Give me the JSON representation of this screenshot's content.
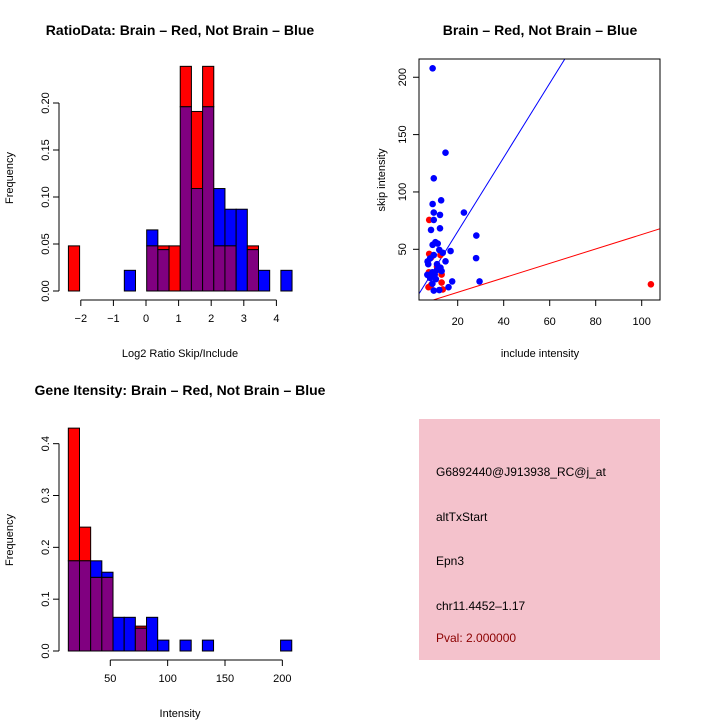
{
  "colors": {
    "red": "#ff0000",
    "blue": "#0000ff",
    "overlap": "#800080",
    "panel_bg": "#f4c2cc",
    "pval": "#8b0000"
  },
  "chart_data": [
    {
      "type": "bar",
      "title": "RatioData: Brain – Red, Not Brain – Blue",
      "xlabel": "Log2 Ratio Skip/Include",
      "ylabel": "Frequency",
      "xticks": [
        "−2",
        "−1",
        "0",
        "1",
        "2",
        "3",
        "4"
      ],
      "xtick_values": [
        -2,
        -1,
        0,
        1,
        2,
        3,
        4
      ],
      "yticks": [
        "0.00",
        "0.05",
        "0.10",
        "0.15",
        "0.20"
      ],
      "ytick_values": [
        0,
        0.05,
        0.1,
        0.15,
        0.2
      ],
      "bin_start": -2.38,
      "bin_width": 0.343,
      "series": [
        {
          "name": "Brain",
          "color": "red",
          "values": [
            0.048,
            0,
            0,
            0,
            0,
            0,
            0,
            0.048,
            0.048,
            0.048,
            0.239,
            0.191,
            0.239,
            0.048,
            0.048,
            0,
            0.048,
            0,
            0,
            0
          ]
        },
        {
          "name": "Not Brain",
          "color": "blue",
          "values": [
            0,
            0,
            0,
            0,
            0,
            0.022,
            0,
            0.065,
            0.044,
            0,
            0.196,
            0.109,
            0.196,
            0.109,
            0.087,
            0.087,
            0.044,
            0.022,
            0,
            0.022
          ]
        }
      ]
    },
    {
      "type": "scatter",
      "title": "Brain – Red, Not Brain – Blue",
      "xlabel": "include intensity",
      "ylabel": "skip intensity",
      "xticks": [
        "20",
        "40",
        "60",
        "80",
        "100"
      ],
      "xtick_values": [
        20,
        40,
        60,
        80,
        100
      ],
      "yticks": [
        "50",
        "100",
        "150",
        "200"
      ],
      "ytick_values": [
        50,
        100,
        150,
        200
      ],
      "xlim": [
        3.3,
        108
      ],
      "ylim": [
        5.8,
        215.7
      ],
      "lines": [
        {
          "color": "blue",
          "slope": 3.23,
          "intercept": 0.9
        },
        {
          "color": "red",
          "slope": 0.63,
          "intercept": -0.1
        }
      ],
      "series": [
        {
          "name": "Brain",
          "color": "red",
          "points": [
            [
              7.6,
              75.6
            ],
            [
              7.6,
              46
            ],
            [
              8.5,
              43
            ],
            [
              11,
              35
            ],
            [
              7.5,
              30
            ],
            [
              13,
              28
            ],
            [
              7.3,
              17
            ],
            [
              8.5,
              19
            ],
            [
              13,
              21
            ],
            [
              13.5,
              15
            ],
            [
              104,
              19.5
            ],
            [
              12.5,
              45
            ]
          ]
        },
        {
          "name": "Not Brain",
          "color": "blue",
          "points": [
            [
              9.1,
              207.8
            ],
            [
              14.7,
              134.2
            ],
            [
              9.6,
              111.9
            ],
            [
              12.8,
              92.7
            ],
            [
              9.1,
              89.5
            ],
            [
              9.6,
              82
            ],
            [
              22.7,
              82
            ],
            [
              12.3,
              80
            ],
            [
              9.6,
              75.6
            ],
            [
              12.3,
              68.3
            ],
            [
              8.4,
              66.9
            ],
            [
              28.1,
              62
            ],
            [
              10.3,
              56.2
            ],
            [
              9.1,
              53.9
            ],
            [
              11.3,
              55
            ],
            [
              12,
              49.5
            ],
            [
              16.9,
              48.5
            ],
            [
              13.5,
              47
            ],
            [
              9.6,
              45
            ],
            [
              28,
              42.3
            ],
            [
              6.9,
              39.4
            ],
            [
              14.7,
              39.5
            ],
            [
              7.2,
              37
            ],
            [
              11,
              37
            ],
            [
              12.5,
              34
            ],
            [
              9,
              30
            ],
            [
              13,
              31
            ],
            [
              6.8,
              27.8
            ],
            [
              8,
              25
            ],
            [
              10.5,
              24
            ],
            [
              17.6,
              22
            ],
            [
              29.5,
              22
            ],
            [
              9,
              20
            ],
            [
              16,
              17
            ],
            [
              12,
              14.5
            ],
            [
              9.6,
              14
            ],
            [
              11,
              32
            ],
            [
              8,
              42
            ],
            [
              10,
              28
            ]
          ]
        }
      ]
    },
    {
      "type": "bar",
      "title": "Gene Itensity: Brain – Red, Not Brain – Blue",
      "xlabel": "Intensity",
      "ylabel": "Frequency",
      "xticks": [
        "50",
        "100",
        "150",
        "200"
      ],
      "xtick_values": [
        50,
        100,
        150,
        200
      ],
      "yticks": [
        "0.0",
        "0.1",
        "0.2",
        "0.3",
        "0.4"
      ],
      "ytick_values": [
        0,
        0.1,
        0.2,
        0.3,
        0.4
      ],
      "bin_start": 13.4,
      "bin_width": 9.74,
      "series": [
        {
          "name": "Brain",
          "color": "red",
          "values": [
            0.43,
            0.239,
            0.142,
            0.142,
            0,
            0,
            0.048,
            0,
            0,
            0,
            0,
            0,
            0,
            0,
            0,
            0,
            0,
            0,
            0,
            0
          ]
        },
        {
          "name": "Not Brain",
          "color": "blue",
          "values": [
            0.174,
            0.174,
            0.174,
            0.152,
            0.065,
            0.065,
            0.044,
            0.065,
            0.021,
            0,
            0.021,
            0,
            0.021,
            0,
            0,
            0,
            0,
            0,
            0,
            0.021
          ]
        }
      ]
    }
  ],
  "info_panel": {
    "probe": "G6892440@J913938_RC@j_at",
    "event_type": "altTxStart",
    "gene": "Epn3",
    "location": "chr11.4452–1.17",
    "pval": "Pval: 2.000000"
  }
}
